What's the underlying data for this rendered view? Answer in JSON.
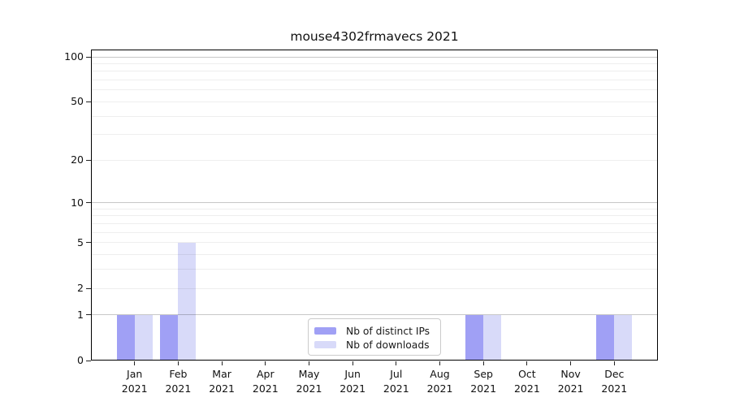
{
  "title": "mouse4302frmavecs 2021",
  "chart_data": {
    "type": "bar",
    "title": "mouse4302frmavecs 2021",
    "year": "2021",
    "categories": [
      "Jan",
      "Feb",
      "Mar",
      "Apr",
      "May",
      "Jun",
      "Jul",
      "Aug",
      "Sep",
      "Oct",
      "Nov",
      "Dec"
    ],
    "series": [
      {
        "key": "distinct-ips",
        "name": "Nb of distinct IPs",
        "color": "#a0a0f5",
        "values": [
          1,
          1,
          0,
          0,
          0,
          0,
          0,
          0,
          1,
          0,
          0,
          1
        ]
      },
      {
        "key": "downloads",
        "name": "Nb of downloads",
        "color": "#d8daf9",
        "values": [
          1,
          5,
          0,
          0,
          0,
          0,
          0,
          0,
          1,
          0,
          0,
          1
        ]
      }
    ],
    "xlabel": "",
    "ylabel": "",
    "y_scale": "log1p",
    "ylim": [
      0,
      112
    ],
    "y_ticks": [
      100,
      50,
      20,
      10,
      5,
      2,
      1,
      0
    ],
    "y_major_gridlines": [
      1,
      10,
      100
    ],
    "y_minor_gridlines": [
      2,
      3,
      4,
      5,
      6,
      7,
      8,
      9,
      20,
      30,
      40,
      50,
      60,
      70,
      80,
      90
    ],
    "grid": "horizontal",
    "legend_position": "lower-center"
  }
}
